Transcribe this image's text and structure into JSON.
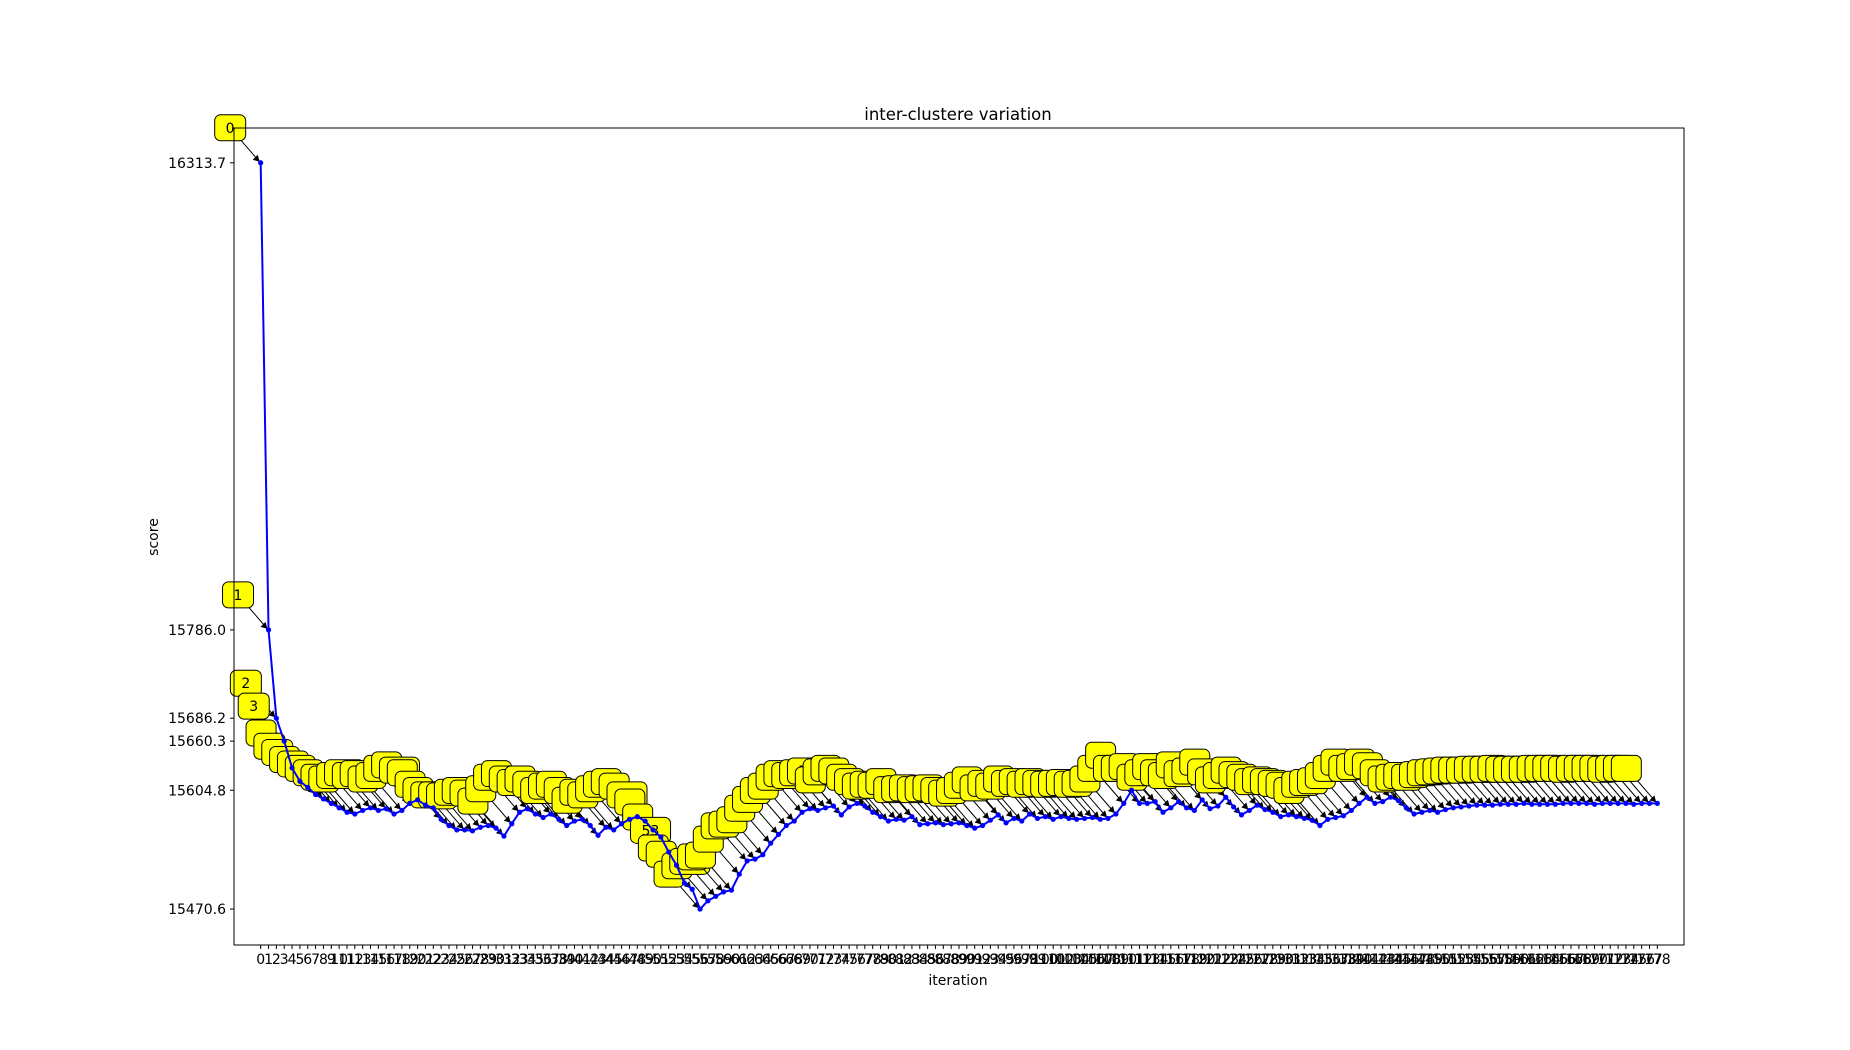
{
  "chart_data": {
    "type": "line",
    "title": "inter-clustere variation",
    "xlabel": "iteration",
    "ylabel": "score",
    "xlim": [
      -3.4,
      181.4
    ],
    "ylim": [
      15430,
      16353
    ],
    "line_color": "#0000ff",
    "annotation_face": "#ffff00",
    "legend": "none",
    "grid": false,
    "y_ticks": [
      16313.7,
      15786.0,
      15686.2,
      15660.3,
      15604.8,
      15470.6
    ],
    "annotated_points": [
      0,
      1,
      2,
      3,
      5,
      6,
      8,
      14,
      19,
      21,
      50,
      53,
      58,
      73,
      116,
      158
    ],
    "x": [
      0,
      1,
      2,
      3,
      4,
      5,
      6,
      7,
      8,
      9,
      10,
      11,
      12,
      13,
      14,
      15,
      16,
      17,
      18,
      19,
      20,
      21,
      22,
      23,
      24,
      25,
      26,
      27,
      28,
      29,
      30,
      31,
      32,
      33,
      34,
      35,
      36,
      37,
      38,
      39,
      40,
      41,
      42,
      43,
      44,
      45,
      46,
      47,
      48,
      49,
      50,
      51,
      52,
      53,
      54,
      55,
      56,
      57,
      58,
      59,
      60,
      61,
      62,
      63,
      64,
      65,
      66,
      67,
      68,
      69,
      70,
      71,
      72,
      73,
      74,
      75,
      76,
      77,
      78,
      79,
      80,
      81,
      82,
      83,
      84,
      85,
      86,
      87,
      88,
      89,
      90,
      91,
      92,
      93,
      94,
      95,
      96,
      97,
      98,
      99,
      100,
      101,
      102,
      103,
      104,
      105,
      106,
      107,
      108,
      109,
      110,
      111,
      112,
      113,
      114,
      115,
      116,
      117,
      118,
      119,
      120,
      121,
      122,
      123,
      124,
      125,
      126,
      127,
      128,
      129,
      130,
      131,
      132,
      133,
      134,
      135,
      136,
      137,
      138,
      139,
      140,
      141,
      142,
      143,
      144,
      145,
      146,
      147,
      148,
      149,
      150,
      151,
      152,
      153,
      154,
      155,
      156,
      157,
      158,
      159,
      160,
      161,
      162,
      163,
      164,
      165,
      166,
      167,
      168,
      169,
      170,
      171,
      172,
      173,
      174,
      175,
      176,
      177,
      178
    ],
    "values": [
      16313.7,
      15786.0,
      15686.2,
      15660.3,
      15630.0,
      15615.0,
      15608.0,
      15600.0,
      15595.0,
      15590.0,
      15585.0,
      15580.0,
      15578.0,
      15582.0,
      15585.0,
      15582.0,
      15584.0,
      15578.0,
      15582.0,
      15590.0,
      15594.0,
      15588.0,
      15585.0,
      15572.0,
      15565.0,
      15560.0,
      15560.0,
      15559.0,
      15563.0,
      15565.0,
      15562.0,
      15553.0,
      15567.0,
      15580.0,
      15584.0,
      15578.0,
      15574.0,
      15578.0,
      15572.0,
      15565.0,
      15570.0,
      15572.0,
      15565.0,
      15554.0,
      15563.0,
      15560.0,
      15567.0,
      15572.0,
      15575.0,
      15570.0,
      15560.0,
      15552.0,
      15535.0,
      15520.0,
      15500.0,
      15493.0,
      15470.6,
      15480.0,
      15485.0,
      15490.0,
      15492.0,
      15510.0,
      15525.0,
      15527.0,
      15532.0,
      15545.0,
      15555.0,
      15565.0,
      15570.0,
      15580.0,
      15584.0,
      15582.0,
      15585.0,
      15587.0,
      15577.0,
      15586.0,
      15590.0,
      15587.0,
      15580.0,
      15575.0,
      15570.0,
      15572.0,
      15571.0,
      15575.0,
      15566.0,
      15567.0,
      15568.0,
      15566.0,
      15567.0,
      15568.0,
      15565.0,
      15562.0,
      15565.0,
      15571.0,
      15577.0,
      15568.0,
      15573.0,
      15570.0,
      15578.0,
      15573.0,
      15575.0,
      15572.0,
      15575.0,
      15573.0,
      15572.0,
      15573.0,
      15574.0,
      15572.0,
      15573.0,
      15578.0,
      15590.0,
      15604.8,
      15590.0,
      15590.0,
      15592.0,
      15580.0,
      15585.0,
      15592.0,
      15585.0,
      15582.0,
      15594.0,
      15584.0,
      15587.0,
      15597.0,
      15586.0,
      15577.0,
      15582.0,
      15588.0,
      15583.0,
      15580.0,
      15575.0,
      15577.0,
      15575.0,
      15573.0,
      15571.0,
      15565.0,
      15572.0,
      15574.0,
      15576.0,
      15582.0,
      15590.0,
      15597.0,
      15590.0,
      15592.0,
      15597.0,
      15593.0,
      15585.0,
      15578.0,
      15580.0,
      15582.0,
      15580.0,
      15583.0,
      15585.0,
      15586.0,
      15587.0,
      15588.0,
      15588.0,
      15588.0,
      15589.0,
      15589.0,
      15589.0,
      15590.0,
      15589.0,
      15589.0,
      15589.0,
      15589.0,
      15590.0,
      15590.0,
      15590.0,
      15590.0,
      15589.0,
      15590.0,
      15590.0,
      15590.0,
      15590.0,
      15589.0,
      15590.0,
      15590.0,
      15590.0
    ]
  }
}
